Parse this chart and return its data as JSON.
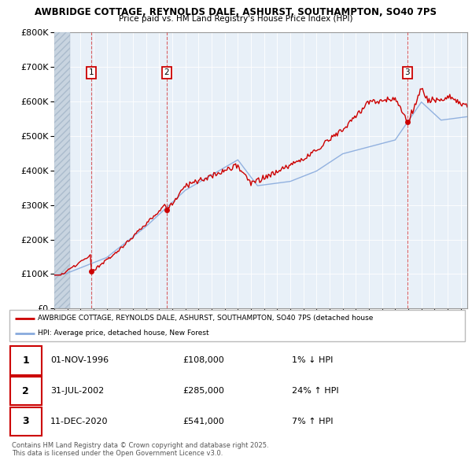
{
  "title1": "AWBRIDGE COTTAGE, REYNOLDS DALE, ASHURST, SOUTHAMPTON, SO40 7PS",
  "title2": "Price paid vs. HM Land Registry's House Price Index (HPI)",
  "legend_property": "AWBRIDGE COTTAGE, REYNOLDS DALE, ASHURST, SOUTHAMPTON, SO40 7PS (detached house",
  "legend_hpi": "HPI: Average price, detached house, New Forest",
  "sale_dates": [
    "01-NOV-1996",
    "31-JUL-2002",
    "11-DEC-2020"
  ],
  "sale_prices": [
    108000,
    285000,
    541000
  ],
  "sale_labels": [
    "1",
    "2",
    "3"
  ],
  "copyright_text": "Contains HM Land Registry data © Crown copyright and database right 2025.\nThis data is licensed under the Open Government Licence v3.0.",
  "property_color": "#cc0000",
  "hpi_color": "#88aadd",
  "chart_bg": "#e8f0f8",
  "hatch_color": "#c8d4e0",
  "grid_color": "#ffffff",
  "ylim": [
    0,
    800000
  ],
  "yticks": [
    0,
    100000,
    200000,
    300000,
    400000,
    500000,
    600000,
    700000,
    800000
  ],
  "x_start_year": 1994,
  "x_end_year": 2025,
  "sale_year_nums": [
    1996.833,
    2002.583,
    2020.917
  ]
}
